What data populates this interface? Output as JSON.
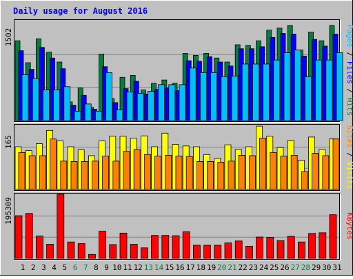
{
  "chart_data": [
    {
      "type": "bar",
      "title": "Daily usage for August 2016",
      "categories": [
        "1",
        "2",
        "3",
        "4",
        "5",
        "6",
        "7",
        "8",
        "9",
        "10",
        "11",
        "12",
        "13",
        "14",
        "15",
        "16",
        "17",
        "18",
        "19",
        "20",
        "21",
        "22",
        "23",
        "24",
        "25",
        "26",
        "27",
        "28",
        "29",
        "30",
        "31"
      ],
      "weekend_days": [
        "6",
        "7",
        "13",
        "14",
        "20",
        "21",
        "27",
        "28"
      ],
      "ylabel_parts": [
        "Pages",
        "Files",
        "Hits"
      ],
      "ymax_label": "1502",
      "ylim": [
        0,
        1502
      ],
      "grid": true,
      "series": [
        {
          "name": "Hits",
          "color": "#008040",
          "values": [
            1200,
            870,
            1230,
            1030,
            880,
            280,
            490,
            200,
            1000,
            330,
            650,
            680,
            460,
            560,
            610,
            560,
            1010,
            980,
            1010,
            940,
            880,
            1140,
            1130,
            1200,
            1360,
            1390,
            1430,
            1060,
            1330,
            1200,
            1430
          ]
        },
        {
          "name": "Files",
          "color": "#0000ff",
          "values": [
            1050,
            770,
            1100,
            940,
            780,
            230,
            380,
            170,
            810,
            270,
            480,
            590,
            400,
            470,
            490,
            450,
            900,
            890,
            960,
            880,
            820,
            1080,
            1080,
            1110,
            1250,
            1310,
            1300,
            970,
            1220,
            1120,
            1300
          ]
        },
        {
          "name": "Pages",
          "color": "#00c0ff",
          "values": [
            690,
            630,
            460,
            460,
            510,
            140,
            250,
            140,
            720,
            160,
            430,
            410,
            440,
            540,
            540,
            540,
            790,
            720,
            720,
            660,
            670,
            850,
            850,
            850,
            910,
            1020,
            1060,
            660,
            910,
            910,
            1020
          ]
        }
      ]
    },
    {
      "type": "bar",
      "categories": [
        "1",
        "2",
        "3",
        "4",
        "5",
        "6",
        "7",
        "8",
        "9",
        "10",
        "11",
        "12",
        "13",
        "14",
        "15",
        "16",
        "17",
        "18",
        "19",
        "20",
        "21",
        "22",
        "23",
        "24",
        "25",
        "26",
        "27",
        "28",
        "29",
        "30",
        "31"
      ],
      "ylabel_parts": [
        "Sites",
        "Visits"
      ],
      "ymax_label": "165",
      "ylim": [
        0,
        165
      ],
      "grid": true,
      "series": [
        {
          "name": "Visits",
          "color": "#ffff00",
          "values": [
            110,
            100,
            118,
            152,
            125,
            110,
            102,
            87,
            125,
            137,
            137,
            132,
            138,
            110,
            145,
            116,
            112,
            110,
            90,
            80,
            115,
            103,
            110,
            163,
            137,
            108,
            126,
            75,
            135,
            103,
            130
          ]
        },
        {
          "name": "Sites",
          "color": "#ff8000",
          "values": [
            95,
            87,
            87,
            130,
            73,
            72,
            72,
            73,
            86,
            73,
            98,
            103,
            90,
            86,
            88,
            86,
            85,
            72,
            72,
            70,
            73,
            88,
            87,
            132,
            95,
            86,
            88,
            46,
            93,
            87,
            130
          ]
        }
      ]
    },
    {
      "type": "bar",
      "categories": [
        "1",
        "2",
        "3",
        "4",
        "5",
        "6",
        "7",
        "8",
        "9",
        "10",
        "11",
        "12",
        "13",
        "14",
        "15",
        "16",
        "17",
        "18",
        "19",
        "20",
        "21",
        "22",
        "23",
        "24",
        "25",
        "26",
        "27",
        "28",
        "29",
        "30",
        "31"
      ],
      "ylabel_parts": [
        "KBytes"
      ],
      "ymax_label": "195309",
      "ylim": [
        0,
        195309
      ],
      "grid": true,
      "series": [
        {
          "name": "KBytes",
          "color": "#ff0000",
          "values": [
            130000,
            137000,
            68000,
            43000,
            195309,
            50000,
            45000,
            12000,
            83000,
            42000,
            77000,
            43000,
            32000,
            70000,
            70000,
            69000,
            81000,
            40000,
            40000,
            40000,
            47000,
            53000,
            37000,
            65000,
            64000,
            54000,
            67000,
            50000,
            76000,
            78000,
            133000
          ]
        }
      ]
    }
  ]
}
